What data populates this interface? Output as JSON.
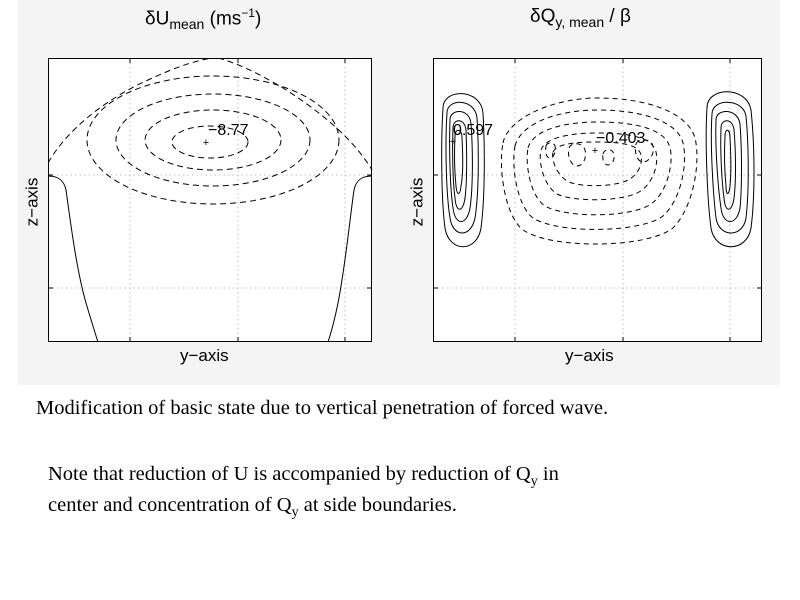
{
  "left_panel": {
    "title_delta": "δ",
    "title_var": "U",
    "title_sub": "mean",
    "title_unit_pre": " (ms",
    "title_unit_sup": "−1",
    "title_unit_post": ")",
    "xlabel": "y−axis",
    "ylabel": "z−axis",
    "extremum_label": "−8.77"
  },
  "right_panel": {
    "title_delta": "δ",
    "title_var": "Q",
    "title_sub": "y, mean",
    "title_post": " / β",
    "xlabel": "y−axis",
    "ylabel": "z−axis",
    "max_label": "0.597",
    "min_label": "−0.403"
  },
  "caption": {
    "line1": "Modification of basic state due to vertical penetration of forced wave.",
    "line2_a": "Note that reduction of U is accompanied by reduction of Q",
    "line2_sub": "y",
    "line2_b": " in",
    "line3_a": "center and concentration of Q",
    "line3_sub": "y",
    "line3_b": " at side boundaries."
  }
}
